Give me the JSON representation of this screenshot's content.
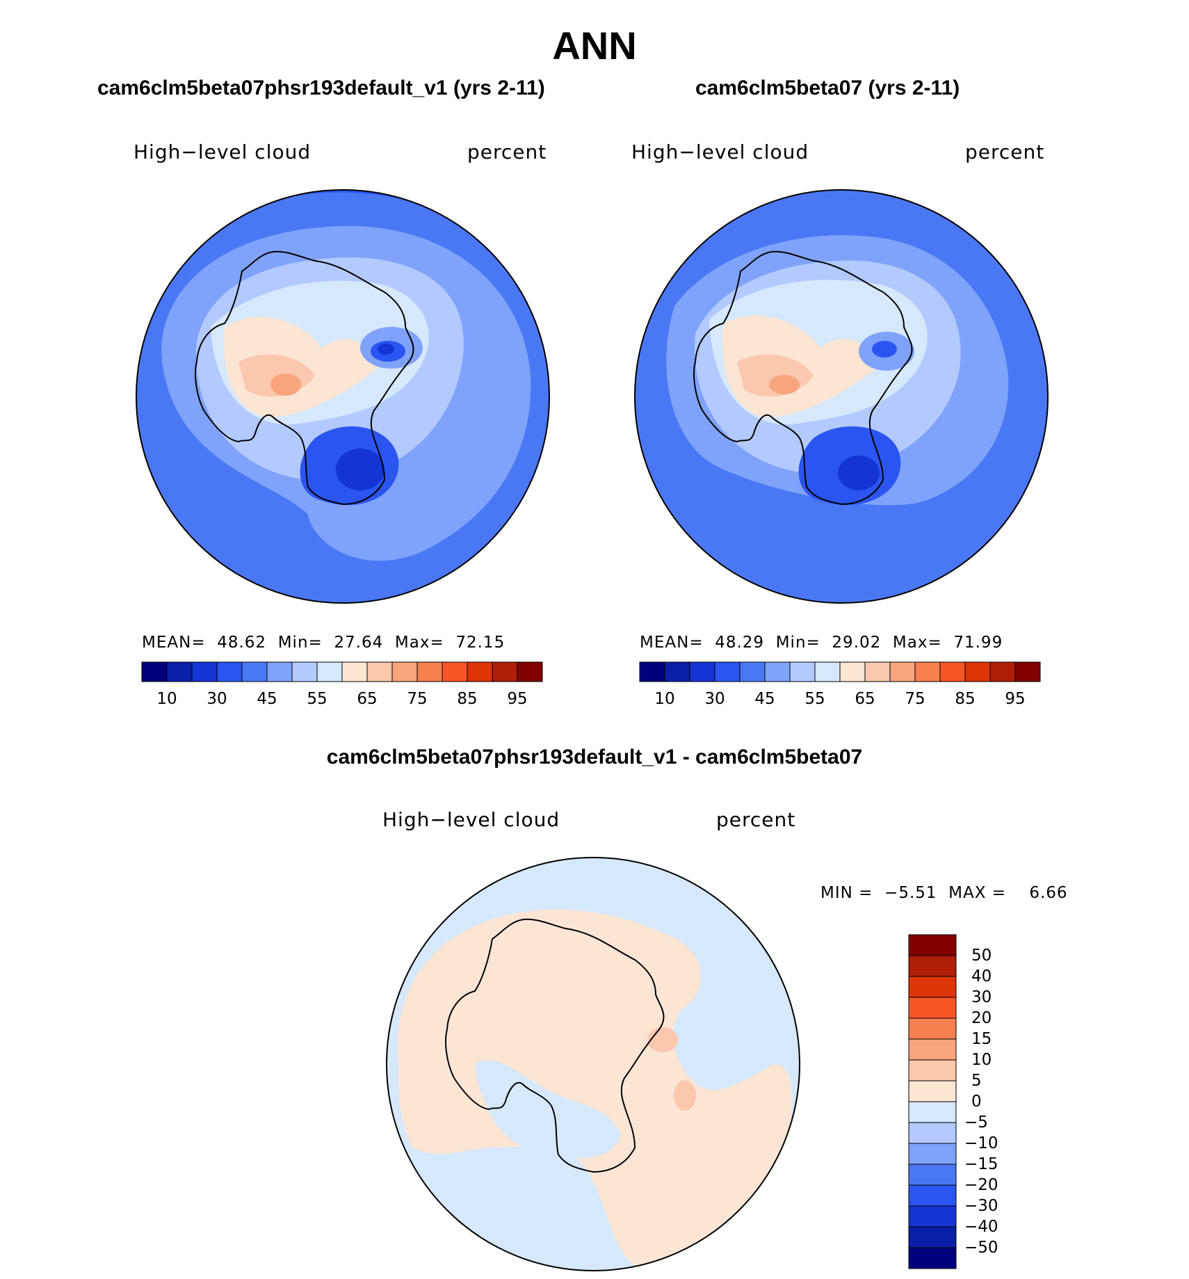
{
  "chart_data": [
    {
      "type": "heatmap",
      "projection": "south-polar-stereographic",
      "title": "cam6clm5beta07phsr193default_v1 (yrs 2-11)",
      "left_label": "High−level cloud",
      "right_label": "percent",
      "stats": {
        "mean_label": "MEAN=",
        "mean": "48.62",
        "min_label": "Min=",
        "min": "27.64",
        "max_label": "Max=",
        "max": "72.15"
      },
      "colorbar_ticks": [
        "10",
        "30",
        "45",
        "55",
        "65",
        "75",
        "85",
        "95"
      ]
    },
    {
      "type": "heatmap",
      "projection": "south-polar-stereographic",
      "title": "cam6clm5beta07 (yrs 2-11)",
      "left_label": "High−level cloud",
      "right_label": "percent",
      "stats": {
        "mean_label": "MEAN=",
        "mean": "48.29",
        "min_label": "Min=",
        "min": "29.02",
        "max_label": "Max=",
        "max": "71.99"
      },
      "colorbar_ticks": [
        "10",
        "30",
        "45",
        "55",
        "65",
        "75",
        "85",
        "95"
      ]
    },
    {
      "type": "heatmap",
      "projection": "south-polar-stereographic",
      "title": "cam6clm5beta07phsr193default_v1 - cam6clm5beta07",
      "left_label": "High−level cloud",
      "right_label": "percent",
      "stats": {
        "min_label": "MIN =",
        "min": "−5.51",
        "max_label": "MAX =",
        "max": "6.66"
      },
      "colorbar_ticks": [
        "50",
        "40",
        "30",
        "20",
        "15",
        "10",
        "5",
        "0",
        "−5",
        "−10",
        "−15",
        "−20",
        "−30",
        "−40",
        "−50"
      ]
    }
  ],
  "header": {
    "title": "ANN"
  },
  "colors": {
    "palette": [
      "#00007f",
      "#0a1fa8",
      "#1434d4",
      "#2a55f0",
      "#4a78f5",
      "#7fa3fb",
      "#b2caff",
      "#d6e8fc",
      "#fde5d4",
      "#fbc7ad",
      "#f8a47d",
      "#f78050",
      "#f95628",
      "#de3509",
      "#b01e06",
      "#820000"
    ],
    "coastline": "#000000"
  }
}
